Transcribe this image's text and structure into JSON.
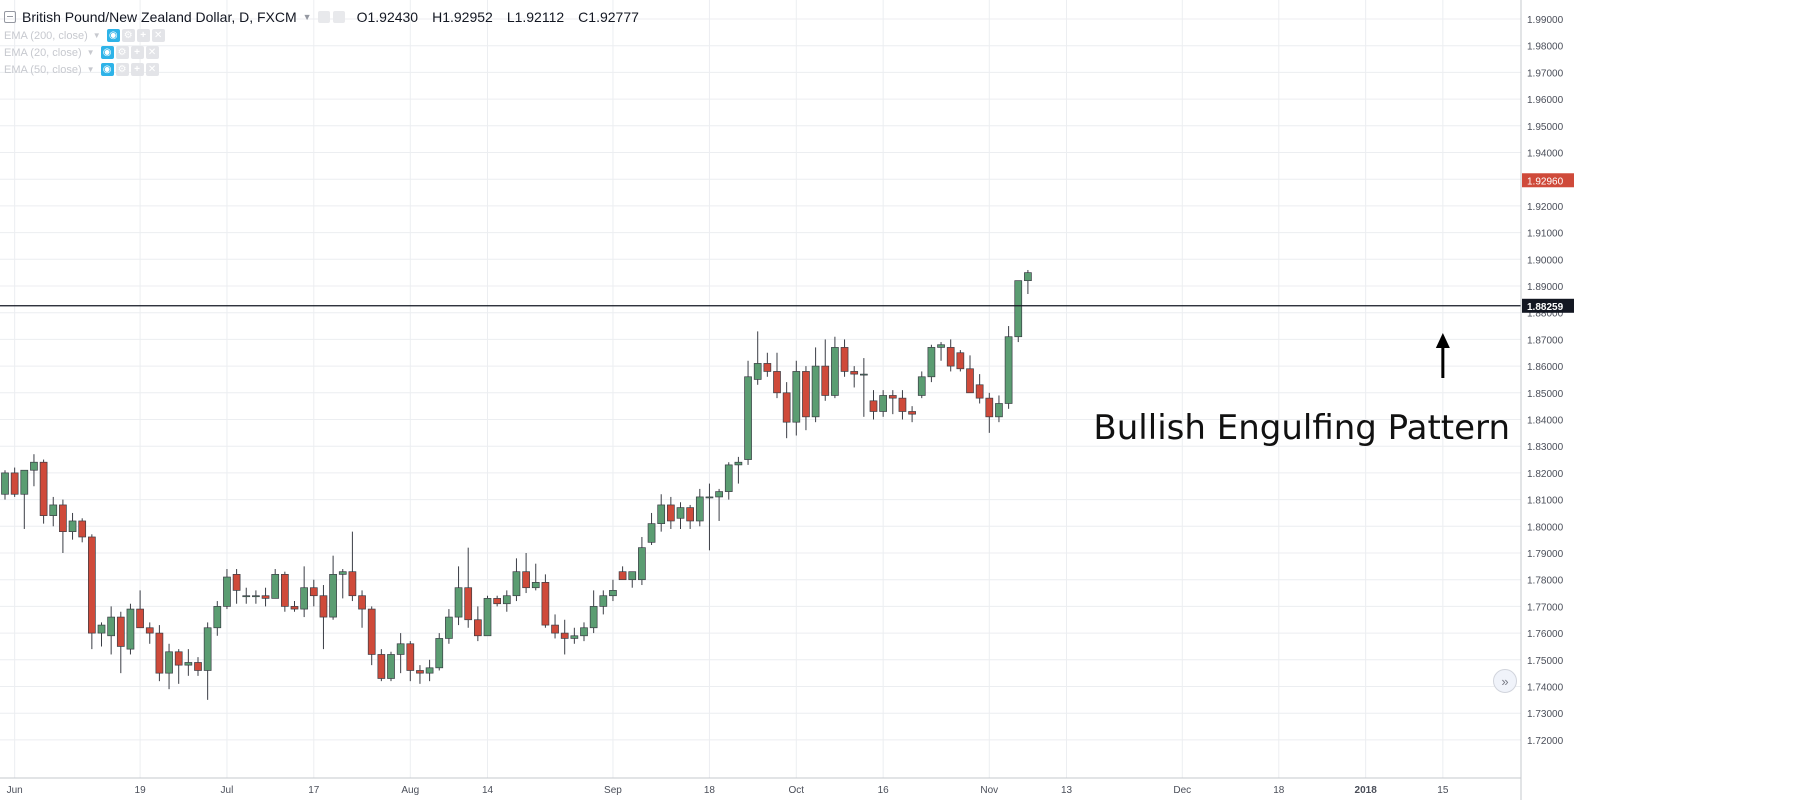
{
  "header": {
    "symbol_title": "British Pound/New Zealand Dollar, D, FXCM",
    "open": "O1.92430",
    "high": "H1.92952",
    "low": "L1.92112",
    "close": "C1.92777"
  },
  "studies": [
    {
      "label": "EMA (200, close)"
    },
    {
      "label": "EMA (20, close)"
    },
    {
      "label": "EMA (50, close)"
    }
  ],
  "colors": {
    "up": "#5b9d72",
    "down": "#cf4a3a",
    "grid": "#eceef1",
    "price_badge": "#cf4a3a",
    "level_badge": "#131722"
  },
  "annotation": {
    "text": "Bullish Engulfing Pattern",
    "arrow": "up-arrow"
  },
  "chart_data": {
    "type": "candlestick",
    "y_ticks": [
      "1.72000",
      "1.73000",
      "1.74000",
      "1.75000",
      "1.76000",
      "1.77000",
      "1.78000",
      "1.79000",
      "1.80000",
      "1.81000",
      "1.82000",
      "1.83000",
      "1.84000",
      "1.85000",
      "1.86000",
      "1.87000",
      "1.88000",
      "1.89000",
      "1.90000",
      "1.91000",
      "1.92000",
      "1.93000",
      "1.94000",
      "1.95000",
      "1.96000",
      "1.97000",
      "1.98000",
      "1.99000"
    ],
    "x_ticks": [
      {
        "label": "Jun",
        "index": 1
      },
      {
        "label": "19",
        "index": 14
      },
      {
        "label": "Jul",
        "index": 23
      },
      {
        "label": "17",
        "index": 32
      },
      {
        "label": "Aug",
        "index": 42
      },
      {
        "label": "14",
        "index": 50
      },
      {
        "label": "Sep",
        "index": 63
      },
      {
        "label": "18",
        "index": 73
      },
      {
        "label": "Oct",
        "index": 82
      },
      {
        "label": "16",
        "index": 91
      },
      {
        "label": "Nov",
        "index": 102
      },
      {
        "label": "13",
        "index": 110
      },
      {
        "label": "Dec",
        "index": 122
      },
      {
        "label": "18",
        "index": 132
      },
      {
        "label": "2018",
        "index": 141
      },
      {
        "label": "15",
        "index": 149
      }
    ],
    "horizontal_level": "1.88259",
    "last_price": "1.92960",
    "annotation_index": 149,
    "candles": [
      [
        1.812,
        1.821,
        1.81,
        1.82
      ],
      [
        1.82,
        1.822,
        1.811,
        1.812
      ],
      [
        1.812,
        1.821,
        1.799,
        1.821
      ],
      [
        1.821,
        1.827,
        1.815,
        1.824
      ],
      [
        1.824,
        1.825,
        1.801,
        1.804
      ],
      [
        1.804,
        1.811,
        1.8,
        1.808
      ],
      [
        1.808,
        1.81,
        1.79,
        1.798
      ],
      [
        1.798,
        1.805,
        1.795,
        1.802
      ],
      [
        1.802,
        1.803,
        1.794,
        1.796
      ],
      [
        1.796,
        1.797,
        1.754,
        1.76
      ],
      [
        1.76,
        1.764,
        1.755,
        1.763
      ],
      [
        1.759,
        1.77,
        1.752,
        1.766
      ],
      [
        1.766,
        1.768,
        1.745,
        1.755
      ],
      [
        1.754,
        1.771,
        1.752,
        1.769
      ],
      [
        1.769,
        1.776,
        1.762,
        1.762
      ],
      [
        1.762,
        1.764,
        1.756,
        1.76
      ],
      [
        1.76,
        1.763,
        1.742,
        1.745
      ],
      [
        1.745,
        1.756,
        1.739,
        1.753
      ],
      [
        1.753,
        1.754,
        1.741,
        1.748
      ],
      [
        1.748,
        1.754,
        1.744,
        1.749
      ],
      [
        1.749,
        1.751,
        1.744,
        1.746
      ],
      [
        1.746,
        1.764,
        1.735,
        1.762
      ],
      [
        1.762,
        1.772,
        1.759,
        1.77
      ],
      [
        1.77,
        1.784,
        1.769,
        1.781
      ],
      [
        1.782,
        1.784,
        1.771,
        1.776
      ],
      [
        1.774,
        1.777,
        1.771,
        1.774
      ],
      [
        1.774,
        1.776,
        1.771,
        1.774
      ],
      [
        1.774,
        1.777,
        1.77,
        1.773
      ],
      [
        1.773,
        1.784,
        1.773,
        1.782
      ],
      [
        1.782,
        1.783,
        1.768,
        1.77
      ],
      [
        1.77,
        1.772,
        1.768,
        1.769
      ],
      [
        1.769,
        1.785,
        1.766,
        1.777
      ],
      [
        1.777,
        1.78,
        1.77,
        1.774
      ],
      [
        1.774,
        1.778,
        1.754,
        1.766
      ],
      [
        1.766,
        1.789,
        1.765,
        1.782
      ],
      [
        1.782,
        1.784,
        1.773,
        1.783
      ],
      [
        1.783,
        1.798,
        1.772,
        1.774
      ],
      [
        1.774,
        1.776,
        1.762,
        1.769
      ],
      [
        1.769,
        1.77,
        1.748,
        1.752
      ],
      [
        1.752,
        1.754,
        1.742,
        1.743
      ],
      [
        1.743,
        1.753,
        1.742,
        1.752
      ],
      [
        1.752,
        1.76,
        1.745,
        1.756
      ],
      [
        1.756,
        1.757,
        1.742,
        1.746
      ],
      [
        1.746,
        1.748,
        1.741,
        1.745
      ],
      [
        1.745,
        1.75,
        1.742,
        1.747
      ],
      [
        1.747,
        1.76,
        1.746,
        1.758
      ],
      [
        1.758,
        1.769,
        1.756,
        1.766
      ],
      [
        1.766,
        1.785,
        1.763,
        1.777
      ],
      [
        1.777,
        1.792,
        1.762,
        1.765
      ],
      [
        1.765,
        1.77,
        1.757,
        1.759
      ],
      [
        1.759,
        1.774,
        1.759,
        1.773
      ],
      [
        1.773,
        1.774,
        1.77,
        1.771
      ],
      [
        1.771,
        1.776,
        1.768,
        1.774
      ],
      [
        1.774,
        1.788,
        1.772,
        1.783
      ],
      [
        1.783,
        1.79,
        1.775,
        1.777
      ],
      [
        1.777,
        1.786,
        1.776,
        1.779
      ],
      [
        1.779,
        1.782,
        1.762,
        1.763
      ],
      [
        1.763,
        1.767,
        1.758,
        1.76
      ],
      [
        1.76,
        1.765,
        1.752,
        1.758
      ],
      [
        1.758,
        1.762,
        1.756,
        1.759
      ],
      [
        1.759,
        1.764,
        1.757,
        1.762
      ],
      [
        1.762,
        1.776,
        1.76,
        1.77
      ],
      [
        1.77,
        1.776,
        1.767,
        1.774
      ],
      [
        1.774,
        1.78,
        1.772,
        1.776
      ],
      [
        1.783,
        1.785,
        1.78,
        1.78
      ],
      [
        1.78,
        1.783,
        1.777,
        1.783
      ],
      [
        1.78,
        1.796,
        1.778,
        1.792
      ],
      [
        1.794,
        1.805,
        1.793,
        1.801
      ],
      [
        1.801,
        1.812,
        1.798,
        1.808
      ],
      [
        1.808,
        1.811,
        1.799,
        1.802
      ],
      [
        1.803,
        1.809,
        1.799,
        1.807
      ],
      [
        1.807,
        1.808,
        1.799,
        1.802
      ],
      [
        1.802,
        1.814,
        1.8,
        1.811
      ],
      [
        1.811,
        1.816,
        1.791,
        1.811
      ],
      [
        1.811,
        1.814,
        1.802,
        1.813
      ],
      [
        1.813,
        1.824,
        1.81,
        1.823
      ],
      [
        1.823,
        1.826,
        1.816,
        1.824
      ],
      [
        1.825,
        1.862,
        1.823,
        1.856
      ],
      [
        1.855,
        1.873,
        1.853,
        1.861
      ],
      [
        1.861,
        1.865,
        1.856,
        1.858
      ],
      [
        1.858,
        1.865,
        1.848,
        1.85
      ],
      [
        1.85,
        1.854,
        1.833,
        1.839
      ],
      [
        1.839,
        1.862,
        1.834,
        1.858
      ],
      [
        1.858,
        1.86,
        1.836,
        1.841
      ],
      [
        1.841,
        1.867,
        1.839,
        1.86
      ],
      [
        1.86,
        1.87,
        1.847,
        1.849
      ],
      [
        1.849,
        1.871,
        1.848,
        1.867
      ],
      [
        1.867,
        1.87,
        1.856,
        1.858
      ],
      [
        1.858,
        1.86,
        1.852,
        1.857
      ],
      [
        1.857,
        1.863,
        1.841,
        1.857
      ],
      [
        1.847,
        1.851,
        1.84,
        1.843
      ],
      [
        1.843,
        1.851,
        1.841,
        1.849
      ],
      [
        1.849,
        1.851,
        1.842,
        1.848
      ],
      [
        1.848,
        1.851,
        1.84,
        1.843
      ],
      [
        1.843,
        1.845,
        1.839,
        1.842
      ],
      [
        1.849,
        1.858,
        1.848,
        1.856
      ],
      [
        1.856,
        1.868,
        1.854,
        1.867
      ],
      [
        1.867,
        1.869,
        1.862,
        1.868
      ],
      [
        1.867,
        1.87,
        1.858,
        1.86
      ],
      [
        1.865,
        1.866,
        1.858,
        1.859
      ],
      [
        1.859,
        1.864,
        1.851,
        1.85
      ],
      [
        1.853,
        1.857,
        1.846,
        1.848
      ],
      [
        1.848,
        1.85,
        1.835,
        1.841
      ],
      [
        1.841,
        1.849,
        1.839,
        1.846
      ],
      [
        1.846,
        1.875,
        1.844,
        1.871
      ],
      [
        1.871,
        1.892,
        1.869,
        1.892
      ],
      [
        1.892,
        1.896,
        1.887,
        1.895
      ]
    ]
  }
}
